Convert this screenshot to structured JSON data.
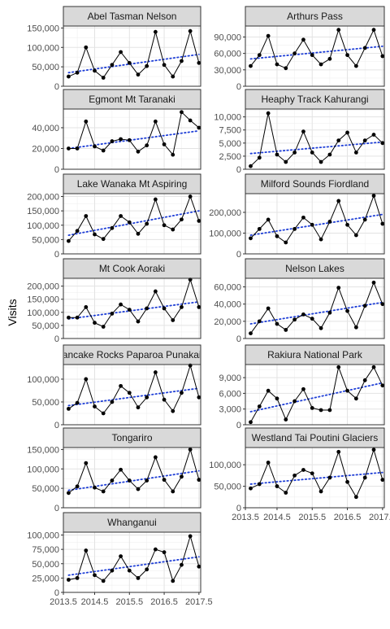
{
  "chart_data": {
    "type": "line",
    "ylabel": "Visits",
    "xlabel": "",
    "x": [
      2013.75,
      2014.0,
      2014.25,
      2014.5,
      2014.75,
      2015.0,
      2015.25,
      2015.5,
      2015.75,
      2016.0,
      2016.25,
      2016.5,
      2016.75,
      2017.0,
      2017.25,
      2017.5
    ],
    "x_ticks": [
      "2013.5",
      "2014.5",
      "2015.5",
      "2016.5",
      "2017.5"
    ],
    "x_tick_values": [
      2013.5,
      2014.5,
      2015.5,
      2016.5,
      2017.5
    ],
    "xlim": [
      2013.6,
      2017.55
    ],
    "series_style": {
      "data_color": "#000000",
      "trend_color": "#1f3fd6",
      "trend_style": "dotted"
    },
    "panel_strip_color": "#d9d9d9",
    "grid": true,
    "facets": [
      {
        "title": "Abel Tasman Nelson",
        "ylim": [
          0,
          155000
        ],
        "y_ticks": [
          0,
          50000,
          100000,
          150000
        ],
        "y_tick_labels": [
          "0",
          "50,000",
          "100,000",
          "150,000"
        ],
        "values": [
          25000,
          35000,
          100000,
          40000,
          22000,
          55000,
          88000,
          60000,
          30000,
          52000,
          140000,
          55000,
          25000,
          65000,
          142000,
          60000
        ],
        "trend": [
          35000,
          82000
        ]
      },
      {
        "title": "Arthurs Pass",
        "ylim": [
          0,
          110000
        ],
        "y_ticks": [
          0,
          30000,
          60000,
          90000
        ],
        "y_tick_labels": [
          "0",
          "30,000",
          "60,000",
          "90,000"
        ],
        "values": [
          37000,
          57000,
          92000,
          40000,
          33000,
          60000,
          85000,
          57000,
          40000,
          50000,
          103000,
          57000,
          37000,
          70000,
          103000,
          55000
        ],
        "trend": [
          50000,
          73000
        ]
      },
      {
        "title": "Egmont Mt Taranaki",
        "ylim": [
          0,
          58000
        ],
        "y_ticks": [
          0,
          20000,
          40000
        ],
        "y_tick_labels": [
          "0",
          "20,000",
          "40,000"
        ],
        "values": [
          20000,
          20000,
          46000,
          22000,
          18000,
          27000,
          29000,
          28000,
          17000,
          23000,
          46000,
          24000,
          14000,
          55000,
          47000,
          40000
        ],
        "trend": [
          20000,
          37000
        ]
      },
      {
        "title": "Heaphy Track Kahurangi",
        "ylim": [
          0,
          11500
        ],
        "y_ticks": [
          0,
          2500,
          5000,
          7500,
          10000
        ],
        "y_tick_labels": [
          "0",
          "2,500",
          "5,000",
          "7,500",
          "10,000"
        ],
        "values": [
          600,
          2200,
          10700,
          2800,
          1400,
          3200,
          7200,
          3200,
          1400,
          2800,
          5500,
          7000,
          3200,
          5500,
          6600,
          5000
        ],
        "trend": [
          3000,
          5200
        ]
      },
      {
        "title": "Lake Wanaka Mt Aspiring",
        "ylim": [
          0,
          210000
        ],
        "y_ticks": [
          0,
          50000,
          100000,
          150000,
          200000
        ],
        "y_tick_labels": [
          "0",
          "50,000",
          "100,000",
          "150,000",
          "200,000"
        ],
        "values": [
          45000,
          80000,
          132000,
          68000,
          52000,
          90000,
          132000,
          110000,
          70000,
          105000,
          190000,
          100000,
          85000,
          120000,
          200000,
          115000
        ],
        "trend": [
          65000,
          150000
        ]
      },
      {
        "title": "Milford Sounds Fiordland",
        "ylim": [
          0,
          290000
        ],
        "y_ticks": [
          0,
          100000,
          200000
        ],
        "y_tick_labels": [
          "0",
          "100,000",
          "200,000"
        ],
        "values": [
          75000,
          120000,
          165000,
          85000,
          55000,
          120000,
          175000,
          140000,
          70000,
          155000,
          255000,
          140000,
          90000,
          165000,
          280000,
          145000
        ],
        "trend": [
          90000,
          190000
        ]
      },
      {
        "title": "Mt Cook Aoraki",
        "ylim": [
          0,
          230000
        ],
        "y_ticks": [
          0,
          50000,
          100000,
          150000,
          200000
        ],
        "y_tick_labels": [
          "0",
          "50,000",
          "100,000",
          "150,000",
          "200,000"
        ],
        "values": [
          80000,
          80000,
          120000,
          60000,
          45000,
          95000,
          130000,
          110000,
          65000,
          115000,
          180000,
          115000,
          70000,
          120000,
          225000,
          120000
        ],
        "trend": [
          75000,
          140000
        ]
      },
      {
        "title": "Nelson Lakes",
        "ylim": [
          0,
          70000
        ],
        "y_ticks": [
          0,
          20000,
          40000,
          60000
        ],
        "y_tick_labels": [
          "0",
          "20,000",
          "40,000",
          "60,000"
        ],
        "values": [
          6000,
          20000,
          35000,
          17000,
          10000,
          22000,
          28000,
          23000,
          12000,
          30000,
          59000,
          32000,
          13000,
          38000,
          65000,
          40000
        ],
        "trend": [
          17000,
          42000
        ]
      },
      {
        "title": "Pancake Rocks Paparoa Punakaiki",
        "ylim": [
          0,
          132000
        ],
        "y_ticks": [
          0,
          50000,
          100000
        ],
        "y_tick_labels": [
          "0",
          "50,000",
          "100,000"
        ],
        "values": [
          35000,
          48000,
          100000,
          40000,
          25000,
          50000,
          85000,
          70000,
          38000,
          60000,
          115000,
          55000,
          30000,
          70000,
          130000,
          60000
        ],
        "trend": [
          42000,
          80000
        ]
      },
      {
        "title": "Rakiura National Park",
        "ylim": [
          0,
          11500
        ],
        "y_ticks": [
          0,
          3000,
          6000,
          9000
        ],
        "y_tick_labels": [
          "0",
          "3,000",
          "6,000",
          "9,000"
        ],
        "values": [
          500,
          3500,
          6500,
          5000,
          1000,
          4500,
          6800,
          3200,
          2800,
          2800,
          11000,
          6500,
          5000,
          8500,
          11000,
          7500
        ],
        "trend": [
          2500,
          8000
        ]
      },
      {
        "title": "Tongariro",
        "ylim": [
          0,
          155000
        ],
        "y_ticks": [
          0,
          50000,
          100000,
          150000
        ],
        "y_tick_labels": [
          "0",
          "50,000",
          "100,000",
          "150,000"
        ],
        "values": [
          38000,
          55000,
          115000,
          52000,
          42000,
          70000,
          98000,
          70000,
          48000,
          70000,
          130000,
          72000,
          42000,
          80000,
          150000,
          72000
        ],
        "trend": [
          45000,
          95000
        ]
      },
      {
        "title": "Westland Tai Poutini Glaciers",
        "ylim": [
          0,
          140000
        ],
        "y_ticks": [
          0,
          50000,
          100000
        ],
        "y_tick_labels": [
          "0",
          "50,000",
          "100,000"
        ],
        "values": [
          45000,
          55000,
          105000,
          50000,
          35000,
          75000,
          88000,
          80000,
          38000,
          70000,
          130000,
          60000,
          25000,
          70000,
          135000,
          65000
        ],
        "trend": [
          55000,
          82000
        ]
      },
      {
        "title": "Whanganui",
        "ylim": [
          0,
          105000
        ],
        "y_ticks": [
          0,
          25000,
          50000,
          75000,
          100000
        ],
        "y_tick_labels": [
          "0",
          "25,000",
          "50,000",
          "75,000",
          "100,000"
        ],
        "values": [
          22000,
          25000,
          73000,
          30000,
          20000,
          38000,
          63000,
          38000,
          25000,
          40000,
          75000,
          70000,
          20000,
          48000,
          98000,
          45000
        ],
        "trend": [
          30000,
          62000
        ]
      }
    ]
  }
}
